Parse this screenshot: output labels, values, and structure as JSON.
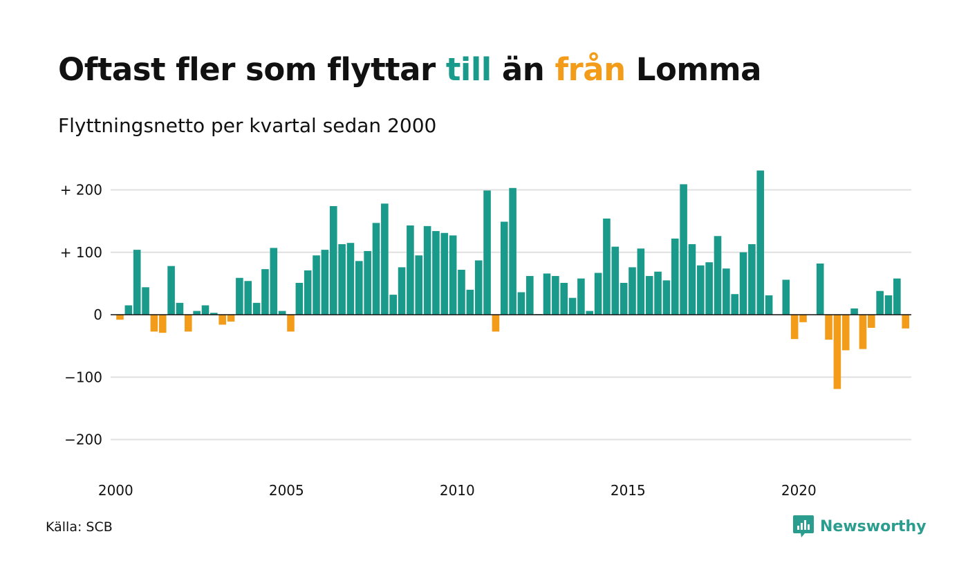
{
  "header": {
    "title_part1": "Oftast fler som flyttar ",
    "title_till": "till",
    "title_part2": " än ",
    "title_fran": "från",
    "title_part3": " Lomma",
    "subtitle": "Flyttningsnetto per kvartal sedan 2000"
  },
  "footer": {
    "source": "Källa: SCB",
    "brand": "Newsworthy",
    "brand_icon": "newsworthy-logo-icon"
  },
  "colors": {
    "positive": "#1a9a8a",
    "negative": "#f39c1a",
    "grid": "#e0e0e0",
    "zero_line": "#111111",
    "text": "#111111",
    "brand": "#2a9d8f"
  },
  "chart_data": {
    "type": "bar",
    "title": "Oftast fler som flyttar till än från Lomma",
    "subtitle": "Flyttningsnetto per kvartal sedan 2000",
    "xlabel": "",
    "ylabel": "",
    "ylim": [
      -200,
      200
    ],
    "yticks": [
      {
        "value": 200,
        "label": "+ 200"
      },
      {
        "value": 100,
        "label": "+ 100"
      },
      {
        "value": 0,
        "label": "0"
      },
      {
        "value": -100,
        "label": "−100"
      },
      {
        "value": -200,
        "label": "−200"
      }
    ],
    "xticks": [
      {
        "year": 2000,
        "label": "2000"
      },
      {
        "year": 2005,
        "label": "2005"
      },
      {
        "year": 2010,
        "label": "2010"
      },
      {
        "year": 2015,
        "label": "2015"
      },
      {
        "year": 2020,
        "label": "2020"
      }
    ],
    "start_year": 2000,
    "start_quarter": 1,
    "grid": true,
    "legend": "none",
    "values": [
      -8,
      15,
      104,
      44,
      -27,
      -29,
      78,
      19,
      -27,
      6,
      15,
      3,
      -16,
      -11,
      59,
      54,
      19,
      73,
      107,
      6,
      -27,
      51,
      71,
      95,
      104,
      174,
      113,
      115,
      86,
      102,
      147,
      178,
      32,
      76,
      143,
      95,
      142,
      134,
      131,
      127,
      72,
      40,
      87,
      199,
      -27,
      149,
      203,
      36,
      62,
      1,
      66,
      62,
      51,
      27,
      58,
      6,
      67,
      154,
      109,
      51,
      76,
      106,
      62,
      69,
      55,
      122,
      209,
      113,
      79,
      84,
      126,
      74,
      33,
      100,
      113,
      231,
      31,
      0,
      56,
      -39,
      -12,
      0,
      82,
      -40,
      -119,
      -57,
      10,
      -55,
      -21,
      38,
      31,
      58,
      -22
    ]
  }
}
